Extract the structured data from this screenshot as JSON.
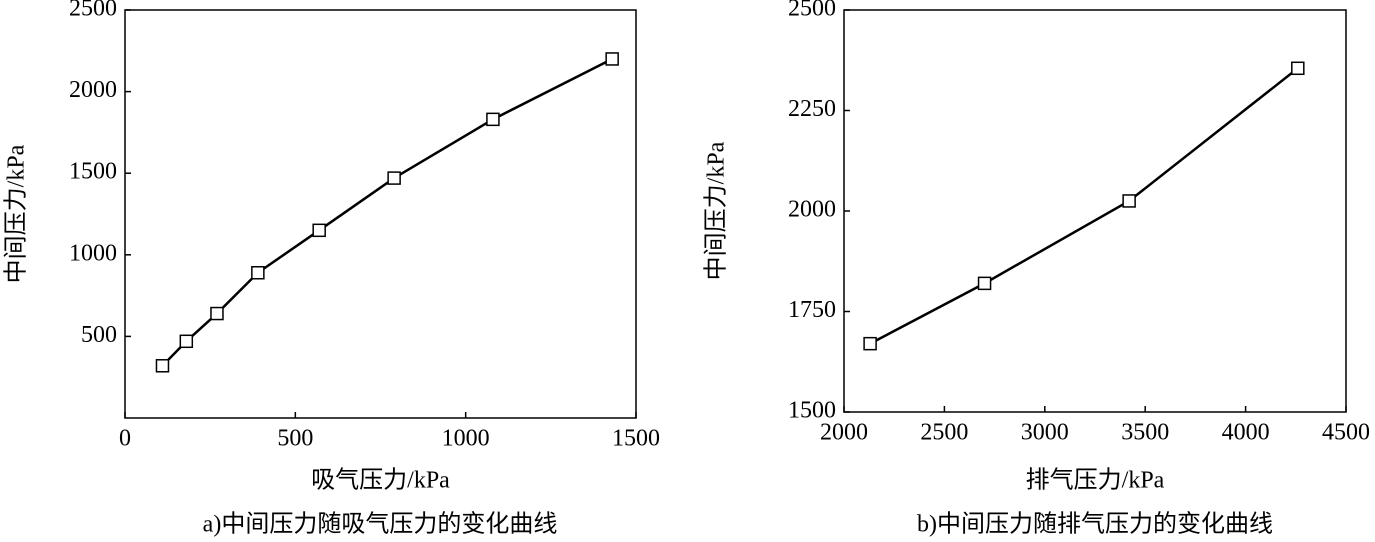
{
  "chart_data": [
    {
      "type": "line",
      "caption": "a)中间压力随吸气压力的变化曲线",
      "x_label": "吸气压力/kPa",
      "y_label": "中间压力/kPa",
      "x": [
        110,
        180,
        270,
        390,
        570,
        790,
        1080,
        1430
      ],
      "series": [
        {
          "color": "#000000",
          "values": [
            320,
            470,
            640,
            890,
            1150,
            1470,
            1830,
            2200
          ]
        }
      ],
      "xlim": [
        0,
        1500
      ],
      "xticks": [
        0,
        500,
        1000,
        1500
      ],
      "ylim": [
        0,
        2500
      ],
      "yticks": [
        500,
        1000,
        1500,
        2000,
        2500
      ]
    },
    {
      "type": "line",
      "caption": "b)中间压力随排气压力的变化曲线",
      "x_label": "排气压力/kPa",
      "y_label": "中间压力/kPa",
      "x": [
        2130,
        2700,
        3420,
        4260
      ],
      "series": [
        {
          "color": "#000000",
          "values": [
            1670,
            1820,
            2025,
            2355
          ]
        }
      ],
      "xlim": [
        2000,
        4500
      ],
      "xticks": [
        2000,
        2500,
        3000,
        3500,
        4000,
        4500
      ],
      "ylim": [
        1500,
        2500
      ],
      "yticks": [
        1500,
        1750,
        2000,
        2250,
        2500
      ]
    }
  ]
}
